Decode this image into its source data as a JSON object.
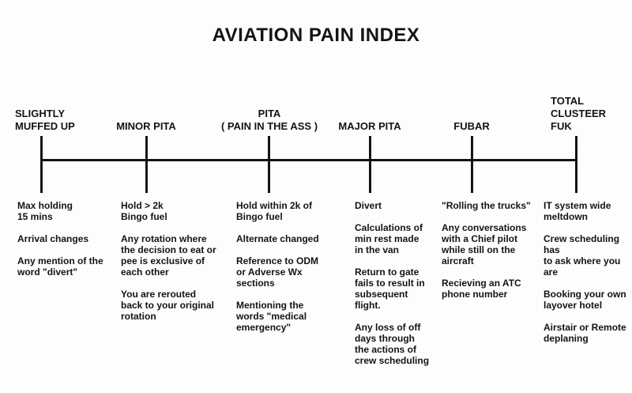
{
  "title": "AVIATION PAIN INDEX",
  "colors": {
    "ink": "#141414",
    "background": "#fdfdfd"
  },
  "levels": [
    {
      "name": "SLIGHTLY MUFFED UP",
      "label": "SLIGHTLY\nMUFFED UP",
      "items": [
        "Max holding\n15 mins",
        "Arrival changes",
        "Any mention of the\nword \"divert\""
      ]
    },
    {
      "name": "MINOR PITA",
      "label": "MINOR PITA",
      "items": [
        "Hold > 2k\nBingo fuel",
        "Any rotation where\nthe decision to eat or\npee is exclusive of\neach other",
        "You are rerouted\nback to your original\nrotation"
      ]
    },
    {
      "name": "PITA (PAIN IN THE ASS)",
      "label": "PITA\n( PAIN IN THE ASS )",
      "items": [
        "Hold within 2k of\nBingo fuel",
        "Alternate changed",
        "Reference to ODM\nor Adverse Wx\nsections",
        "Mentioning the\nwords \"medical\nemergency\""
      ]
    },
    {
      "name": "MAJOR PITA",
      "label": "MAJOR PITA",
      "items": [
        "Divert",
        "Calculations of\nmin rest made\nin the van",
        "Return to gate\nfails to result in\nsubsequent\nflight.",
        "Any loss of off\ndays through\nthe actions of\ncrew scheduling"
      ]
    },
    {
      "name": "FUBAR",
      "label": "FUBAR",
      "items": [
        "\"Rolling the trucks\"",
        "Any conversations\nwith a Chief pilot\nwhile still on the\naircraft",
        "Recieving an ATC\nphone number"
      ]
    },
    {
      "name": "TOTAL CLUSTEER FUK",
      "label": "TOTAL\nCLUSTEER\nFUK",
      "items": [
        "IT system wide\nmeltdown",
        "Crew scheduling has\nto ask where you are",
        "Booking your own\nlayover hotel",
        "Airstair or Remote\ndeplaning"
      ]
    }
  ]
}
